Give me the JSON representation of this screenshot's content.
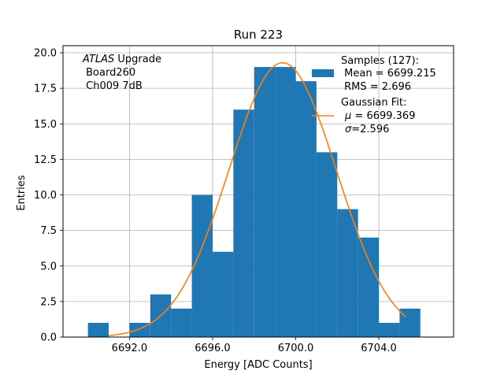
{
  "chart_data": {
    "type": "bar",
    "title": "Run 223",
    "xlabel": "Energy [ADC Counts]",
    "ylabel": "Entries",
    "xlim": [
      6688.8,
      6707.6
    ],
    "ylim": [
      0,
      20.5
    ],
    "grid": true,
    "x_ticks": [
      6692.0,
      6696.0,
      6700.0,
      6704.0
    ],
    "x_tick_labels": [
      "6692.0",
      "6696.0",
      "6700.0",
      "6704.0"
    ],
    "y_ticks": [
      0,
      2.5,
      5,
      7.5,
      10,
      12.5,
      15,
      17.5,
      20
    ],
    "y_tick_labels": [
      "0.0",
      "2.5",
      "5.0",
      "7.5",
      "10.0",
      "12.5",
      "15.0",
      "17.5",
      "20.0"
    ],
    "bin_edges": [
      6690.0,
      6691.0,
      6692.0,
      6693.0,
      6694.0,
      6695.0,
      6696.0,
      6697.0,
      6698.0,
      6699.0,
      6700.0,
      6701.0,
      6702.0,
      6703.0,
      6704.0,
      6705.0,
      6706.0
    ],
    "counts": [
      1,
      0,
      1,
      3,
      2,
      10,
      6,
      16,
      19,
      19,
      18,
      13,
      9,
      7,
      1,
      2
    ],
    "bar_color": "#1f77b4",
    "fit": {
      "mu": 6699.369,
      "sigma": 2.596,
      "amplitude": 19.3,
      "x_range": [
        6691.0,
        6705.3
      ],
      "color": "#ff7f0e"
    },
    "annotation": {
      "italic": "ATLAS",
      "rest": " Upgrade",
      "line2": " Board260",
      "line3": " Ch009 7dB"
    },
    "legend": {
      "position": "top-right",
      "samples_line1": "Samples (127):",
      "samples_line2": " Mean = 6699.215",
      "samples_line3": " RMS = 2.696",
      "fit_line1": "Gaussian Fit:",
      "fit_mu_symbol": "μ",
      "fit_mu_value": " = 6699.369",
      "fit_sigma_symbol": "σ",
      "fit_sigma_value": "=2.596"
    }
  }
}
